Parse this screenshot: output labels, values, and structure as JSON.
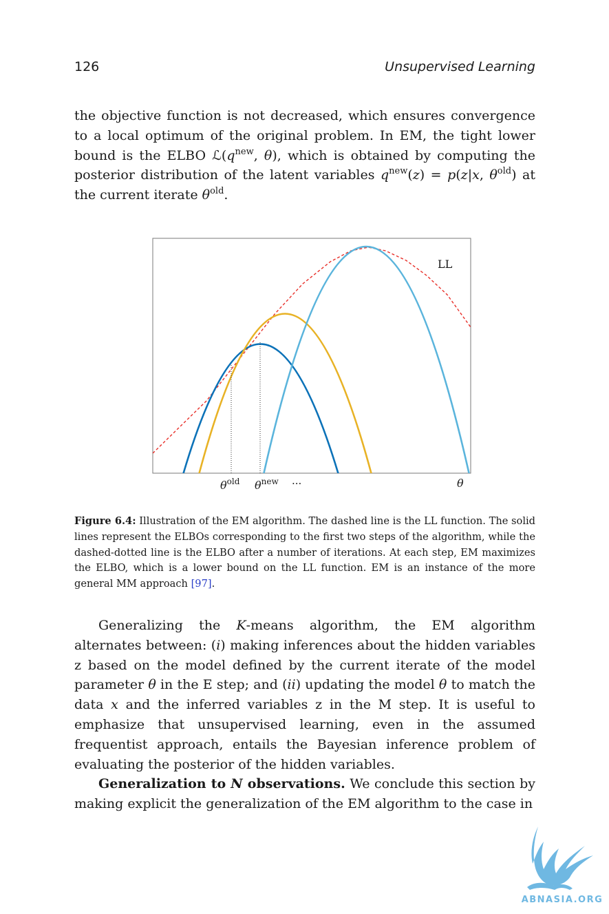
{
  "header": {
    "page_number": "126",
    "running_title": "Unsupervised Learning"
  },
  "paragraph1": {
    "t1": "the objective function is not decreased, which ensures convergence to a local optimum of the original problem. In EM, the tight lower bound is the ELBO ",
    "elbo_sym": "ℒ",
    "t2": "(",
    "q1": "q",
    "q1_sup": "new",
    "t3": ", ",
    "theta1": "θ",
    "t4": "), which is obtained by computing the posterior distribution of the latent variables ",
    "q2": "q",
    "q2_sup": "new",
    "t5": "(",
    "z1": "z",
    "t6": ") = ",
    "p": "p",
    "t7": "(",
    "z2": "z",
    "t8": "|",
    "x1": "x",
    "t9": ", ",
    "theta2": "θ",
    "theta2_sup": "old",
    "t10": ") at the current iterate ",
    "theta3": "θ",
    "theta3_sup": "old",
    "t11": "."
  },
  "figure": {
    "labels": {
      "ll": "LL",
      "theta_old": "θ",
      "theta_old_sup": "old",
      "theta_new": "θ",
      "theta_new_sup": "new",
      "dots": "···",
      "theta_axis": "θ"
    },
    "colors": {
      "ll_curve": "#e8302a",
      "elbo_first": "#0c72b8",
      "elbo_second": "#e8b225",
      "elbo_later": "#5ab4dc",
      "frame": "#7a7a7a"
    }
  },
  "caption": {
    "label": "Figure 6.4:",
    "text": " Illustration of the EM algorithm. The dashed line is the LL function. The solid lines represent the ELBOs corresponding to the first two steps of the algorithm, while the dashed-dotted line is the ELBO after a number of iterations. At each step, EM maximizes the ELBO, which is a lower bound on the LL function. EM is an instance of the more general MM approach ",
    "ref": "[97]",
    "end": "."
  },
  "paragraph2": {
    "t1": "Generalizing the ",
    "k": "K",
    "t2": "-means algorithm, the EM algorithm alternates between: (",
    "i": "i",
    "t3": ") making inferences about the hidden variables z based on the model defined by the current iterate of the model parameter ",
    "theta1": "θ",
    "t4": " in the E step; and (",
    "ii": "ii",
    "t5": ") updating the model ",
    "theta2": "θ",
    "t6": " to match the data ",
    "x": "x",
    "t7": " and the inferred variables z in the M step. It is useful to emphasize that unsupervised learning, even in the assumed frequentist approach, entails the Bayesian inference problem of evaluating the posterior of the hidden variables."
  },
  "paragraph3": {
    "bold1": "Generalization to ",
    "n": "N",
    "bold2": " observations.",
    "t1": " We conclude this section by making explicit the generalization of the EM algorithm to the case in"
  },
  "watermark": {
    "text": "ABNASIA.ORG",
    "color": "#6fb8e2"
  }
}
